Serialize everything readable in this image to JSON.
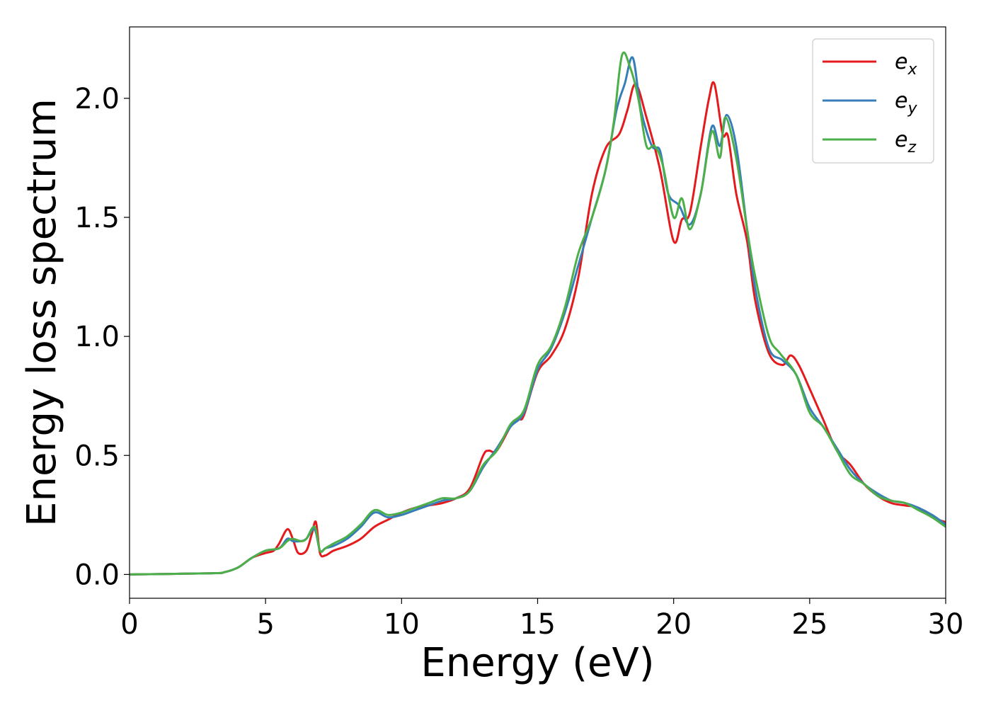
{
  "chart_data": {
    "type": "line",
    "title": "",
    "xlabel": "Energy (eV)",
    "ylabel": "Energy loss spectrum",
    "xlim": [
      0,
      30
    ],
    "ylim": [
      -0.1,
      2.3
    ],
    "xticks": [
      0,
      5,
      10,
      15,
      20,
      25,
      30
    ],
    "xtick_labels": [
      "0",
      "5",
      "10",
      "15",
      "20",
      "25",
      "30"
    ],
    "yticks": [
      0.0,
      0.5,
      1.0,
      1.5,
      2.0
    ],
    "ytick_labels": [
      "0.0",
      "0.5",
      "1.0",
      "1.5",
      "2.0"
    ],
    "grid": false,
    "legend_position": "top-right",
    "series": [
      {
        "name": "e_x",
        "legend_base": "e",
        "legend_sub": "x",
        "color": "#e41a1c",
        "x": [
          0,
          3,
          3.5,
          4,
          4.5,
          5,
          5.3,
          5.5,
          5.8,
          6,
          6.2,
          6.5,
          6.7,
          6.85,
          7,
          7.2,
          7.5,
          8,
          8.5,
          9,
          9.5,
          10,
          10.5,
          11,
          11.5,
          12,
          12.5,
          13,
          13.2,
          13.5,
          14,
          14.3,
          14.5,
          15,
          15.5,
          16,
          16.5,
          17,
          17.5,
          18,
          18.3,
          18.6,
          19,
          19.5,
          20,
          20.3,
          20.6,
          21,
          21.3,
          21.5,
          21.8,
          22,
          22.3,
          22.7,
          23,
          23.5,
          24,
          24.3,
          24.6,
          25,
          25.5,
          26,
          26.5,
          27,
          27.5,
          28,
          28.5,
          29,
          29.5,
          30
        ],
        "y": [
          0,
          0.005,
          0.01,
          0.03,
          0.07,
          0.09,
          0.1,
          0.13,
          0.19,
          0.15,
          0.09,
          0.1,
          0.17,
          0.22,
          0.09,
          0.08,
          0.1,
          0.12,
          0.15,
          0.2,
          0.23,
          0.26,
          0.28,
          0.29,
          0.3,
          0.32,
          0.36,
          0.5,
          0.52,
          0.52,
          0.62,
          0.65,
          0.67,
          0.85,
          0.92,
          1.03,
          1.25,
          1.6,
          1.79,
          1.85,
          1.95,
          2.06,
          1.92,
          1.7,
          1.4,
          1.49,
          1.52,
          1.8,
          2.0,
          2.06,
          1.85,
          1.84,
          1.6,
          1.4,
          1.15,
          0.93,
          0.88,
          0.92,
          0.88,
          0.78,
          0.65,
          0.52,
          0.46,
          0.38,
          0.33,
          0.3,
          0.29,
          0.28,
          0.24,
          0.22
        ]
      },
      {
        "name": "e_y",
        "legend_base": "e",
        "legend_sub": "y",
        "color": "#377eb8",
        "x": [
          0,
          3,
          3.5,
          4,
          4.5,
          5,
          5.5,
          5.8,
          6,
          6.3,
          6.5,
          6.8,
          7,
          7.2,
          7.5,
          8,
          8.5,
          9,
          9.5,
          10,
          10.5,
          11,
          11.5,
          12,
          12.5,
          13,
          13.5,
          14,
          14.5,
          15,
          15.5,
          16,
          16.5,
          17,
          17.5,
          17.9,
          18.2,
          18.5,
          18.8,
          19.2,
          19.5,
          19.8,
          20.2,
          20.6,
          21,
          21.4,
          21.7,
          21.95,
          22.3,
          22.7,
          23,
          23.5,
          24,
          24.5,
          25,
          25.5,
          26,
          26.5,
          27,
          27.5,
          28,
          28.5,
          29,
          29.5,
          30
        ],
        "y": [
          0,
          0.005,
          0.01,
          0.03,
          0.07,
          0.1,
          0.11,
          0.15,
          0.14,
          0.14,
          0.15,
          0.19,
          0.1,
          0.11,
          0.12,
          0.15,
          0.2,
          0.26,
          0.24,
          0.25,
          0.27,
          0.29,
          0.31,
          0.32,
          0.35,
          0.45,
          0.53,
          0.62,
          0.68,
          0.86,
          0.95,
          1.1,
          1.3,
          1.5,
          1.7,
          1.95,
          2.06,
          2.17,
          1.95,
          1.8,
          1.78,
          1.6,
          1.55,
          1.47,
          1.6,
          1.88,
          1.8,
          1.93,
          1.8,
          1.45,
          1.2,
          0.95,
          0.9,
          0.84,
          0.7,
          0.62,
          0.53,
          0.44,
          0.38,
          0.34,
          0.31,
          0.3,
          0.28,
          0.25,
          0.21
        ]
      },
      {
        "name": "e_z",
        "legend_base": "e",
        "legend_sub": "z",
        "color": "#4daf4a",
        "x": [
          0,
          3,
          3.5,
          4,
          4.5,
          5,
          5.5,
          5.8,
          6,
          6.3,
          6.5,
          6.8,
          7,
          7.2,
          7.5,
          8,
          8.5,
          9,
          9.5,
          10,
          10.5,
          11,
          11.5,
          12,
          12.5,
          13,
          13.5,
          14,
          14.5,
          15,
          15.5,
          16,
          16.5,
          17,
          17.5,
          17.8,
          18.1,
          18.4,
          18.7,
          19,
          19.3,
          19.6,
          20,
          20.3,
          20.6,
          21,
          21.4,
          21.7,
          21.9,
          22.3,
          22.7,
          23,
          23.5,
          23.9,
          24.5,
          25,
          25.5,
          26,
          26.5,
          27,
          27.5,
          28,
          28.5,
          29,
          29.5,
          30
        ],
        "y": [
          0,
          0.005,
          0.01,
          0.03,
          0.07,
          0.1,
          0.11,
          0.14,
          0.15,
          0.14,
          0.15,
          0.2,
          0.1,
          0.11,
          0.13,
          0.16,
          0.21,
          0.27,
          0.25,
          0.26,
          0.28,
          0.3,
          0.32,
          0.32,
          0.35,
          0.46,
          0.52,
          0.63,
          0.69,
          0.88,
          0.96,
          1.12,
          1.35,
          1.5,
          1.7,
          1.9,
          2.18,
          2.13,
          2.0,
          1.8,
          1.8,
          1.72,
          1.5,
          1.58,
          1.45,
          1.6,
          1.86,
          1.75,
          1.92,
          1.75,
          1.45,
          1.25,
          1.0,
          0.93,
          0.84,
          0.68,
          0.62,
          0.52,
          0.42,
          0.38,
          0.33,
          0.31,
          0.3,
          0.27,
          0.24,
          0.2
        ]
      }
    ]
  }
}
